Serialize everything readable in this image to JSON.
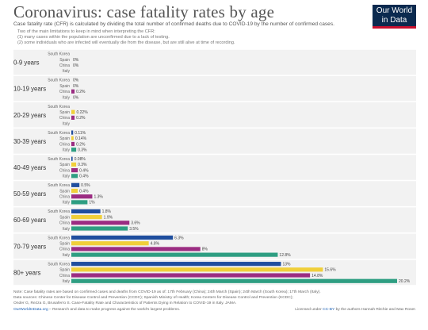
{
  "header": {
    "title": "Coronavirus: case fatality rates by age",
    "logo_line1": "Our World",
    "logo_line2": "in Data",
    "subtitle": "Case fatality rate (CFR) is calculated by dividing the total number of confirmed deaths due to COVID-19 by the number of confirmed cases.",
    "note_lines": [
      "Two of the main limitations to keep in mind when interpreting the CFR:",
      "(1) many cases within the population are unconfirmed due to a lack of testing.",
      "(2) some individuals who are infected will eventually die from the disease, but are still alive at time of recording."
    ]
  },
  "chart_data": {
    "type": "bar",
    "orientation": "horizontal",
    "categories": [
      "0-9 years",
      "10-19 years",
      "20-29 years",
      "30-39 years",
      "40-49 years",
      "50-59 years",
      "60-69 years",
      "70-79 years",
      "80+ years"
    ],
    "series": [
      {
        "name": "South Korea",
        "color": "#1f4e9e",
        "values": [
          0,
          0,
          0,
          0.11,
          0.08,
          0.5,
          1.8,
          6.3,
          13
        ]
      },
      {
        "name": "Spain",
        "color": "#f0cf3a",
        "values": [
          0,
          0,
          0.22,
          0.14,
          0.3,
          0.4,
          1.9,
          4.8,
          15.6
        ]
      },
      {
        "name": "China",
        "color": "#9b2c82",
        "values": [
          0,
          0.2,
          0.2,
          0.2,
          0.4,
          1.3,
          3.6,
          8,
          14.8
        ]
      },
      {
        "name": "Italy",
        "color": "#2e9e82",
        "values": [
          0,
          0,
          0,
          0.3,
          0.4,
          1,
          3.5,
          12.8,
          20.2
        ]
      }
    ],
    "value_labels": [
      [
        "",
        "0%",
        "0%",
        ""
      ],
      [
        "0%",
        "0%",
        "0.2%",
        "0%"
      ],
      [
        "",
        "0.22%",
        "0.2%",
        ""
      ],
      [
        "0.11%",
        "0.14%",
        "0.2%",
        "0.3%"
      ],
      [
        "0.08%",
        "0.3%",
        "0.4%",
        "0.4%"
      ],
      [
        "0.5%",
        "0.4%",
        "1.3%",
        "1%"
      ],
      [
        "1.8%",
        "1.9%",
        "3.6%",
        "3.5%"
      ],
      [
        "6.3%",
        "4.8%",
        "8%",
        "12.8%"
      ],
      [
        "13%",
        "15.6%",
        "14.8%",
        "20.2%"
      ]
    ],
    "xlim": [
      0,
      20.2
    ],
    "grid": false,
    "legend": "none"
  },
  "footer": {
    "note": "Note: Case fatality rates are based on confirmed cases and deaths from COVID-19 as of: 17th February (China); 24th March (Spain); 24th March (South Korea); 17th March (Italy).",
    "sources_line1": "Data sources: Chinese Center for Disease Control and Prevention (CCDC); Spanish Ministry of Health; Korea Centers for Disease Control and Prevention (KCDC);",
    "sources_line2": "Onder G, Rezza G, Brusaferro S. Case-Fatality Rate and Characteristics of Patients Dying in Relation to COVID-19 in Italy. JAMA.",
    "site": "OurWorldInData.org",
    "tagline": " – Research and data to make progress against the world's largest problems.",
    "license_prefix": "Licensed under ",
    "license": "CC-BY",
    "license_suffix": " by the authors Hannah Ritchie and Max Roser."
  }
}
